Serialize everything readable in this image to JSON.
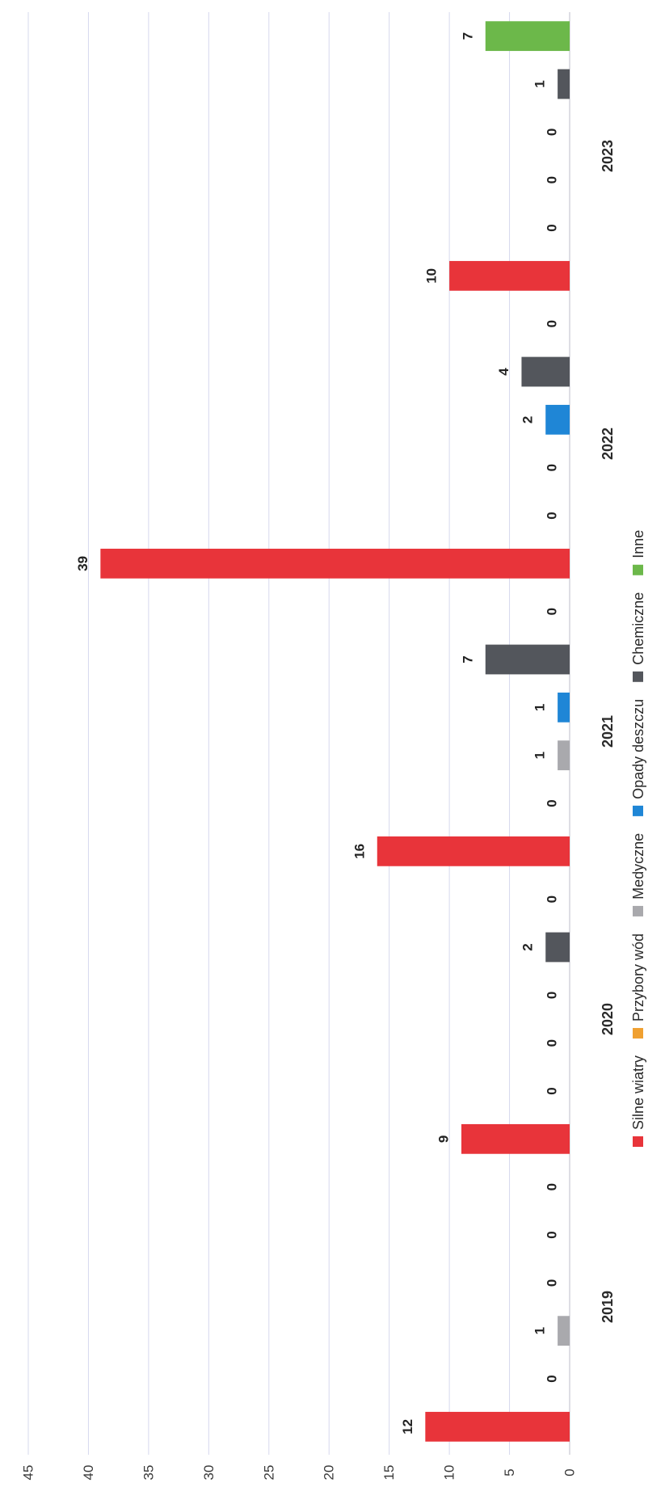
{
  "chart_data": {
    "type": "bar",
    "orientation": "rotated-90-clockwise",
    "categories": [
      "2019",
      "2020",
      "2021",
      "2022",
      "2023"
    ],
    "series": [
      {
        "name": "Silne wiatry",
        "values": [
          12,
          9,
          16,
          39,
          10
        ],
        "color": "#e8343a"
      },
      {
        "name": "Przybory wód",
        "values": [
          0,
          0,
          0,
          0,
          0
        ],
        "color": "#f0a030"
      },
      {
        "name": "Medyczne",
        "values": [
          1,
          0,
          1,
          0,
          0
        ],
        "color": "#a9a9ad"
      },
      {
        "name": "Opady deszczu",
        "values": [
          0,
          0,
          1,
          2,
          0
        ],
        "color": "#1f86d6"
      },
      {
        "name": "Chemiczne",
        "values": [
          0,
          2,
          7,
          4,
          1
        ],
        "color": "#53565c"
      },
      {
        "name": "Inne",
        "values": [
          0,
          0,
          0,
          0,
          7
        ],
        "color": "#6cb84a"
      }
    ],
    "title": "",
    "xlabel": "",
    "ylabel": "",
    "ylim": [
      0,
      45
    ],
    "yticks": [
      "0",
      "5",
      "10",
      "15",
      "20",
      "25",
      "30",
      "35",
      "40",
      "45"
    ],
    "grid": true,
    "legend_position": "bottom",
    "data_labels": true
  }
}
